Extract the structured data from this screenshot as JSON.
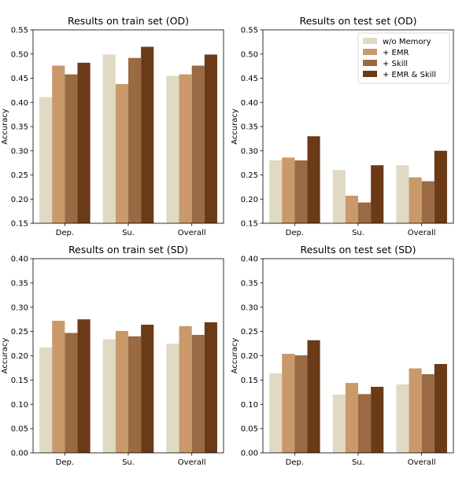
{
  "colors": {
    "w/o Memory": "#e0d9c4",
    "+ EMR": "#c9996b",
    "+ Skill": "#9a6a42",
    "+ EMR & Skill": "#6b3a17"
  },
  "legend": {
    "entries": [
      "w/o Memory",
      "+ EMR",
      "+ Skill",
      "+ EMR & Skill"
    ],
    "placement": "top-right",
    "in_panel": 1
  },
  "chart_data": [
    {
      "type": "bar",
      "title": "Results on train set (OD)",
      "xlabel": "",
      "ylabel": "Accuracy",
      "categories": [
        "Dep.",
        "Su.",
        "Overall"
      ],
      "ylim": [
        0.15,
        0.55
      ],
      "yticks": [
        "0.15",
        "0.20",
        "0.25",
        "0.30",
        "0.35",
        "0.40",
        "0.45",
        "0.50",
        "0.55"
      ],
      "grid": false,
      "series": [
        {
          "name": "w/o Memory",
          "values": [
            0.411,
            0.499,
            0.455
          ]
        },
        {
          "name": "+ EMR",
          "values": [
            0.476,
            0.438,
            0.458
          ]
        },
        {
          "name": "+ Skill",
          "values": [
            0.458,
            0.492,
            0.476
          ]
        },
        {
          "name": "+ EMR & Skill",
          "values": [
            0.482,
            0.515,
            0.499
          ]
        }
      ]
    },
    {
      "type": "bar",
      "title": "Results on test set (OD)",
      "xlabel": "",
      "ylabel": "Accuracy",
      "categories": [
        "Dep.",
        "Su.",
        "Overall"
      ],
      "ylim": [
        0.15,
        0.55
      ],
      "yticks": [
        "0.15",
        "0.20",
        "0.25",
        "0.30",
        "0.35",
        "0.40",
        "0.45",
        "0.50",
        "0.55"
      ],
      "grid": false,
      "series": [
        {
          "name": "w/o Memory",
          "values": [
            0.28,
            0.26,
            0.27
          ]
        },
        {
          "name": "+ EMR",
          "values": [
            0.286,
            0.207,
            0.245
          ]
        },
        {
          "name": "+ Skill",
          "values": [
            0.28,
            0.193,
            0.237
          ]
        },
        {
          "name": "+ EMR & Skill",
          "values": [
            0.33,
            0.27,
            0.3
          ]
        }
      ]
    },
    {
      "type": "bar",
      "title": "Results on train set (SD)",
      "xlabel": "",
      "ylabel": "Accuracy",
      "categories": [
        "Dep.",
        "Su.",
        "Overall"
      ],
      "ylim": [
        0.0,
        0.4
      ],
      "yticks": [
        "0.00",
        "0.05",
        "0.10",
        "0.15",
        "0.20",
        "0.25",
        "0.30",
        "0.35",
        "0.40"
      ],
      "grid": false,
      "series": [
        {
          "name": "w/o Memory",
          "values": [
            0.217,
            0.234,
            0.225
          ]
        },
        {
          "name": "+ EMR",
          "values": [
            0.272,
            0.251,
            0.261
          ]
        },
        {
          "name": "+ Skill",
          "values": [
            0.247,
            0.24,
            0.243
          ]
        },
        {
          "name": "+ EMR & Skill",
          "values": [
            0.275,
            0.264,
            0.269
          ]
        }
      ]
    },
    {
      "type": "bar",
      "title": "Results on test set (SD)",
      "xlabel": "",
      "ylabel": "Accuracy",
      "categories": [
        "Dep.",
        "Su.",
        "Overall"
      ],
      "ylim": [
        0.0,
        0.4
      ],
      "yticks": [
        "0.00",
        "0.05",
        "0.10",
        "0.15",
        "0.20",
        "0.25",
        "0.30",
        "0.35",
        "0.40"
      ],
      "grid": false,
      "series": [
        {
          "name": "w/o Memory",
          "values": [
            0.164,
            0.12,
            0.141
          ]
        },
        {
          "name": "+ EMR",
          "values": [
            0.204,
            0.144,
            0.174
          ]
        },
        {
          "name": "+ Skill",
          "values": [
            0.201,
            0.121,
            0.162
          ]
        },
        {
          "name": "+ EMR & Skill",
          "values": [
            0.232,
            0.136,
            0.183
          ]
        }
      ]
    }
  ]
}
